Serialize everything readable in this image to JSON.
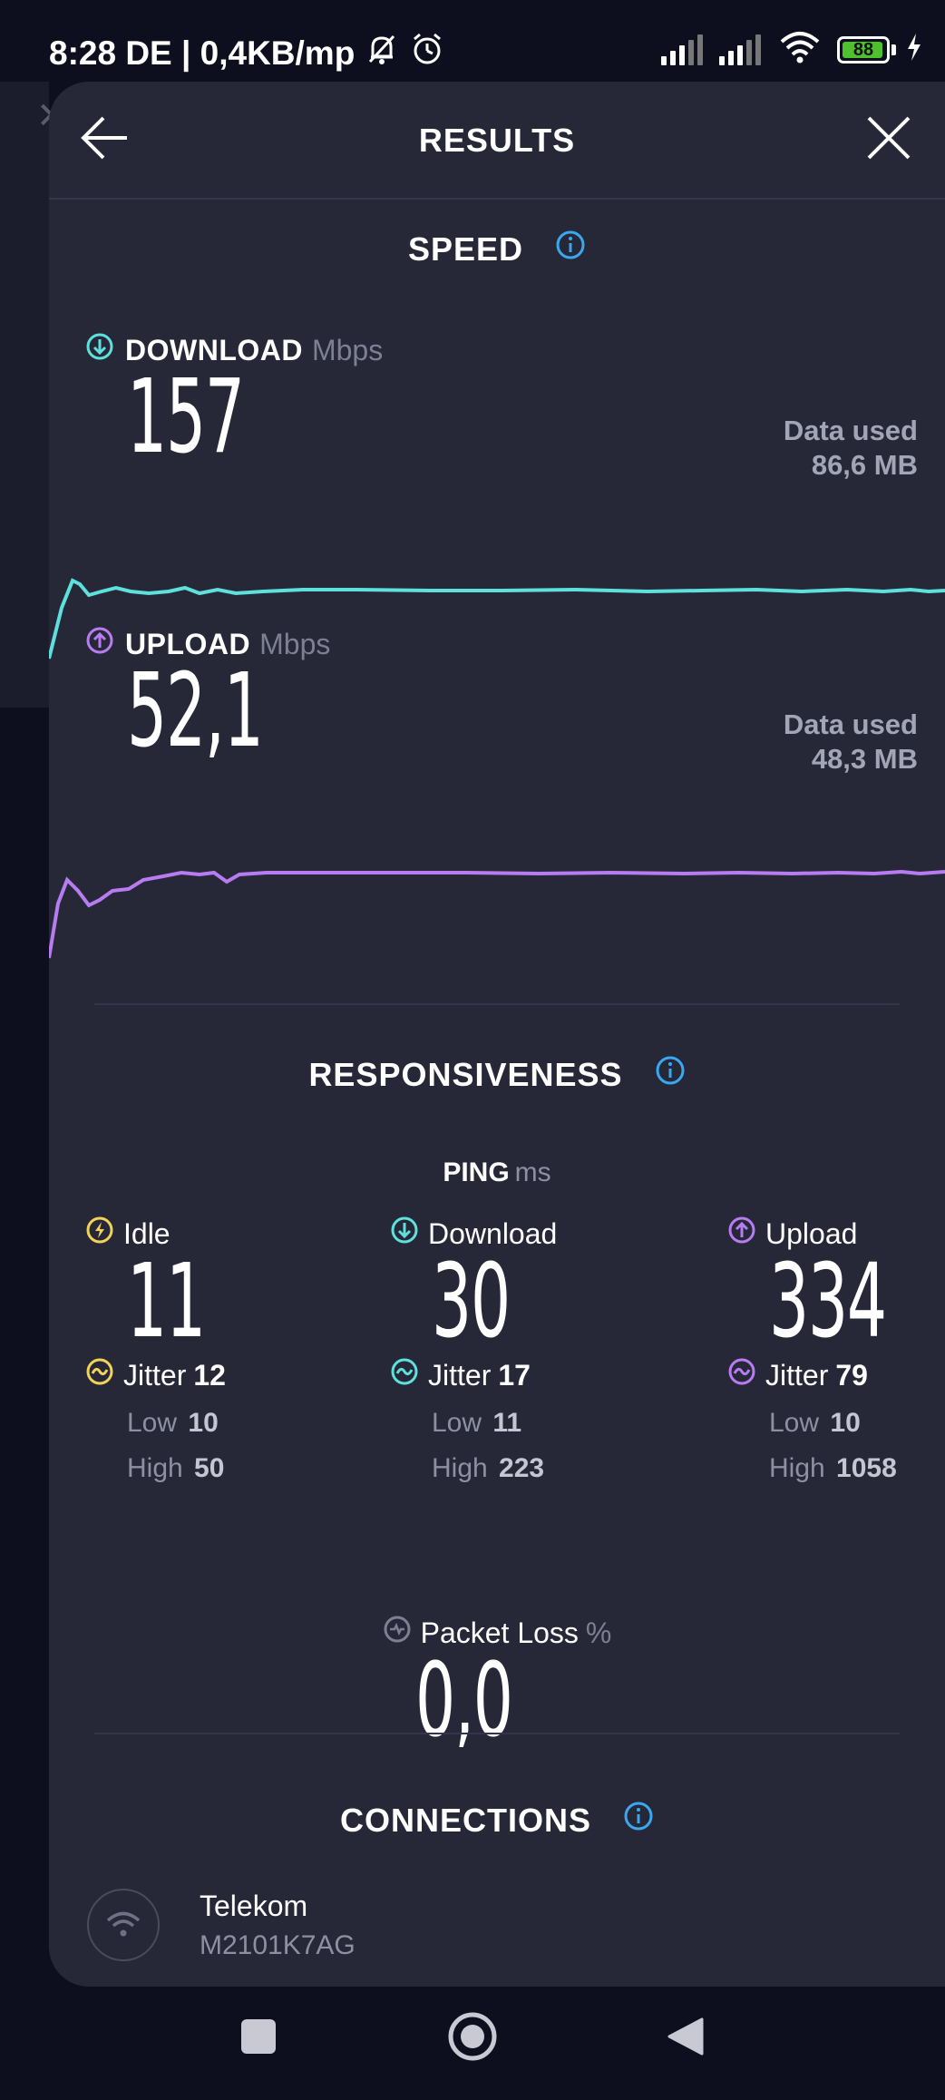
{
  "status_bar": {
    "time_info": "8:28 DE | 0,4KB/mp",
    "battery": "88"
  },
  "header": {
    "title": "RESULTS",
    "back_icon": "arrow-left-icon",
    "close_icon": "close-icon"
  },
  "speed": {
    "title": "SPEED",
    "download": {
      "label": "DOWNLOAD",
      "unit": "Mbps",
      "value": "157",
      "data_used_label": "Data used",
      "data_used_value": "86,6 MB",
      "color": "#5ee0dc"
    },
    "upload": {
      "label": "UPLOAD",
      "unit": "Mbps",
      "value": "52,1",
      "data_used_label": "Data used",
      "data_used_value": "48,3 MB",
      "color": "#b77cf1"
    }
  },
  "responsiveness": {
    "title": "RESPONSIVENESS",
    "ping_label": "PING",
    "ping_unit": "ms",
    "idle": {
      "label": "Idle",
      "value": "11",
      "jitter_label": "Jitter",
      "jitter": "12",
      "low_label": "Low",
      "low": "10",
      "high_label": "High",
      "high": "50",
      "color": "#f2d35a"
    },
    "download": {
      "label": "Download",
      "value": "30",
      "jitter_label": "Jitter",
      "jitter": "17",
      "low_label": "Low",
      "low": "11",
      "high_label": "High",
      "high": "223",
      "color": "#5ee0dc"
    },
    "upload": {
      "label": "Upload",
      "value": "334",
      "jitter_label": "Jitter",
      "jitter": "79",
      "low_label": "Low",
      "low": "10",
      "high_label": "High",
      "high": "1058",
      "color": "#b77cf1"
    },
    "packet_loss": {
      "label": "Packet Loss",
      "unit": "%",
      "value": "0,0"
    }
  },
  "connections": {
    "title": "CONNECTIONS",
    "provider": "Telekom",
    "device": "M2101K7AG"
  },
  "colors": {
    "info_blue": "#3aa8f0",
    "sheet_bg": "#262838",
    "page_bg": "#0d0e1e"
  }
}
